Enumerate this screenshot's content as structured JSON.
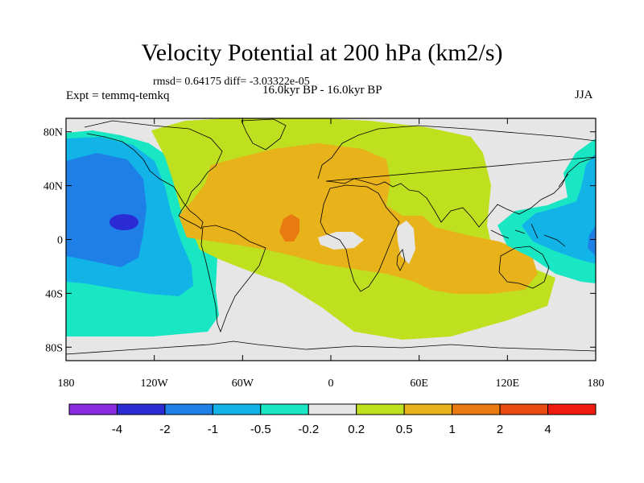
{
  "title": "Velocity Potential at 200 hPa (km2/s)",
  "stats": "rmsd= 0.64175 diff= -3.03322e-05",
  "experiment": "Expt = temmq-temkq",
  "period": "16.0kyr BP - 16.0kyr BP",
  "season": "JJA",
  "map": {
    "projection": "cylindrical equidistant",
    "lon_range": [
      -180,
      180
    ],
    "lat_range": [
      -90,
      90
    ],
    "lat_ticks": [
      {
        "value": 80,
        "label": "80N"
      },
      {
        "value": 40,
        "label": "40N"
      },
      {
        "value": 0,
        "label": "0"
      },
      {
        "value": -40,
        "label": "40S"
      },
      {
        "value": -80,
        "label": "80S"
      }
    ],
    "lon_ticks": [
      {
        "value": -180,
        "label": "180"
      },
      {
        "value": -120,
        "label": "120W"
      },
      {
        "value": -60,
        "label": "60W"
      },
      {
        "value": 0,
        "label": "0"
      },
      {
        "value": 60,
        "label": "60E"
      },
      {
        "value": 120,
        "label": "120E"
      },
      {
        "value": 180,
        "label": "180"
      }
    ]
  },
  "colorbar": {
    "colors": [
      "#8a2be2",
      "#2b2bd6",
      "#1e7fe6",
      "#12b4e8",
      "#19e6c2",
      "#e6e6e6",
      "#bfe01f",
      "#e8b21a",
      "#e87a10",
      "#e84a10",
      "#ee1c10"
    ],
    "labels": [
      "-4",
      "-2",
      "-1",
      "-0.5",
      "-0.2",
      "0.2",
      "0.5",
      "1",
      "2",
      "4"
    ]
  }
}
